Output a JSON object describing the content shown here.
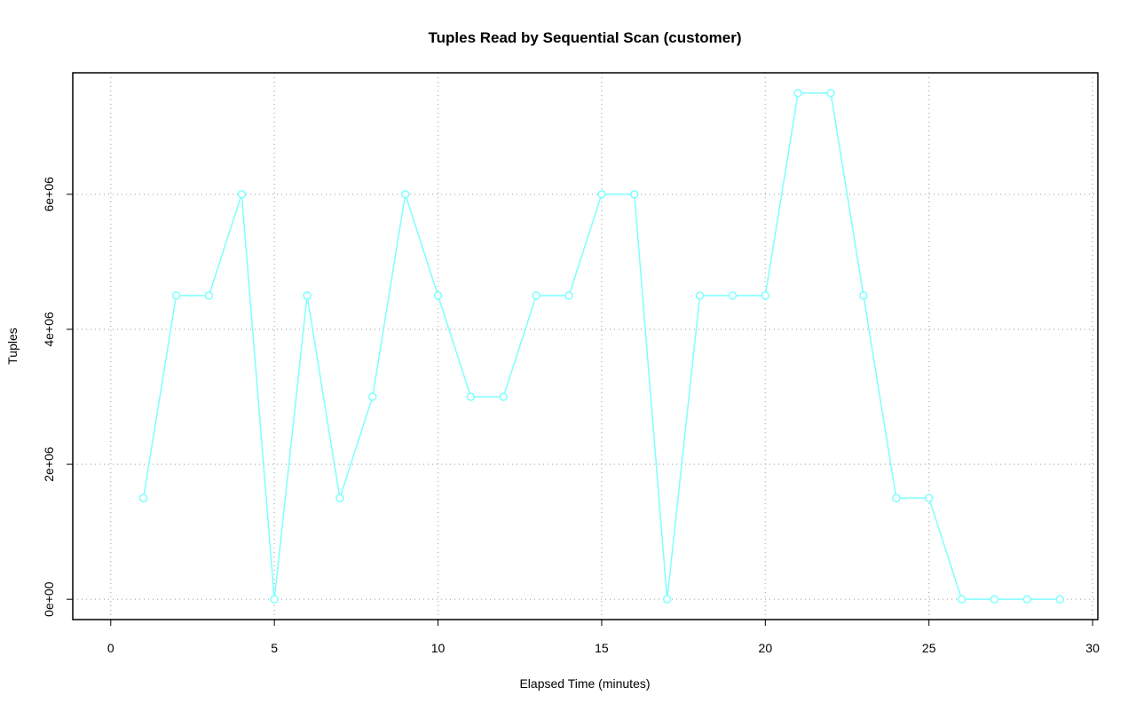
{
  "chart_data": {
    "type": "line",
    "title": "Tuples Read by Sequential Scan (customer)",
    "xlabel": "Elapsed Time (minutes)",
    "ylabel": "Tuples",
    "x": [
      1,
      2,
      3,
      4,
      5,
      6,
      7,
      8,
      9,
      10,
      11,
      12,
      13,
      14,
      15,
      16,
      17,
      18,
      19,
      20,
      21,
      22,
      23,
      24,
      25,
      26,
      27,
      28,
      29
    ],
    "series": [
      {
        "color": "#7fffff",
        "values": [
          1500000,
          4500000,
          4500000,
          6000000,
          0,
          4500000,
          1500000,
          3000000,
          6000000,
          4500000,
          3000000,
          3000000,
          4500000,
          4500000,
          6000000,
          6000000,
          0,
          4500000,
          4500000,
          4500000,
          7500000,
          7500000,
          4500000,
          1500000,
          1500000,
          0,
          0,
          0,
          0
        ]
      }
    ],
    "xlim": [
      -1.16,
      30.16
    ],
    "xticks": [
      0,
      5,
      10,
      15,
      20,
      25,
      30
    ],
    "ylim": [
      -300000,
      7800000
    ],
    "yticks": [
      {
        "value": 0,
        "label": "0e+00"
      },
      {
        "value": 2000000,
        "label": "2e+06"
      },
      {
        "value": 4000000,
        "label": "4e+06"
      },
      {
        "value": 6000000,
        "label": "6e+06"
      }
    ],
    "grid": true
  }
}
